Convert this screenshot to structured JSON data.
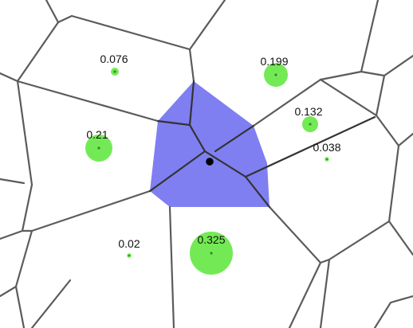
{
  "diagram": {
    "highlight_color": "#7f7ff2",
    "weight_color": "#73ea55",
    "center_dot_color": "#2d8f23",
    "query_point_color": "#000000",
    "sites": [
      {
        "label": "0.076",
        "weight": 0.076
      },
      {
        "label": "0.199",
        "weight": 0.199
      },
      {
        "label": "0.132",
        "weight": 0.132
      },
      {
        "label": "0.21",
        "weight": 0.21
      },
      {
        "label": "0.038",
        "weight": 0.038
      },
      {
        "label": "0.02",
        "weight": 0.02
      },
      {
        "label": "0.325",
        "weight": 0.325
      }
    ]
  }
}
